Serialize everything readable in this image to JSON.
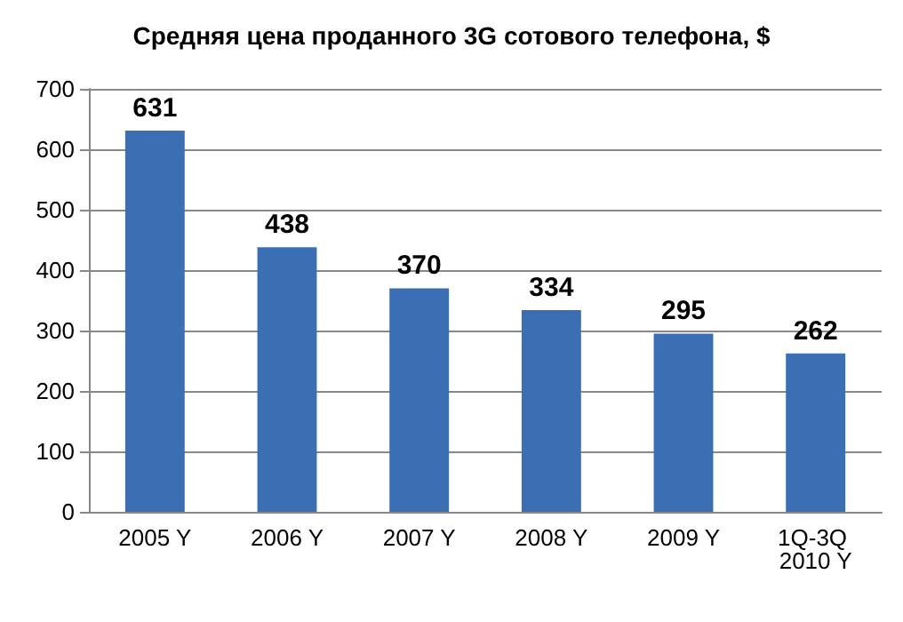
{
  "chart_data": {
    "type": "bar",
    "title": "Средняя цена проданного 3G сотового телефона, $",
    "categories": [
      "2005 Y",
      "2006 Y",
      "2007 Y",
      "2008 Y",
      "2009 Y",
      "1Q-3Q 2010 Y"
    ],
    "values": [
      631,
      438,
      370,
      334,
      295,
      262
    ],
    "color": "#3c6eb4",
    "ylim": [
      0,
      700
    ],
    "yticks": [
      0,
      100,
      200,
      300,
      400,
      500,
      600,
      700
    ],
    "grid": "y",
    "data_labels": true
  }
}
